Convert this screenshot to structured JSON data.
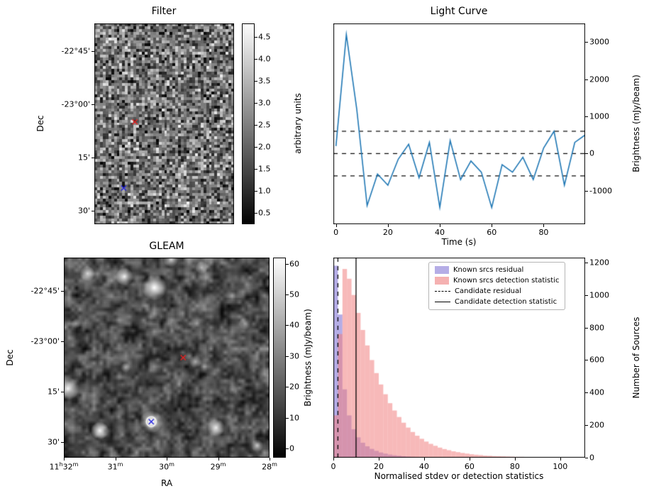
{
  "figure": {
    "background": "#ffffff"
  },
  "chart_data": [
    {
      "id": "filter",
      "type": "heatmap",
      "title": "Filter",
      "ylabel": "Dec",
      "ytick_labels": [
        "-22°45'",
        "-23°00'",
        "15'",
        "30'"
      ],
      "colorbar": {
        "label": "arbitrary units",
        "vmin": 0.25,
        "vmax": 4.8,
        "ticks": [
          4.5,
          4.0,
          3.5,
          3.0,
          2.5,
          2.0,
          1.5,
          1.0,
          0.5
        ],
        "decimals": 1
      },
      "markers": [
        {
          "name": "candidate-marker",
          "color": "#e82222",
          "x": 0.29,
          "y": 0.49
        },
        {
          "name": "known-source-marker",
          "color": "#2222dd",
          "x": 0.21,
          "y": 0.82
        }
      ],
      "noise": {
        "seed": 42,
        "cols": 50,
        "rows": 71,
        "mean": 0.45,
        "amp": 0.5
      }
    },
    {
      "id": "light_curve",
      "type": "line",
      "title": "Light Curve",
      "xlabel": "Time (s)",
      "ylabel": "Brightness (mJy/beam)",
      "line_color": "#1f77b4",
      "x": [
        0,
        4,
        8,
        12,
        16,
        20,
        24,
        28,
        32,
        36,
        40,
        44,
        48,
        52,
        56,
        60,
        64,
        68,
        72,
        76,
        80,
        84,
        88,
        92,
        96
      ],
      "y": [
        200,
        3200,
        1200,
        -1400,
        -550,
        -850,
        -150,
        250,
        -650,
        300,
        -1450,
        350,
        -700,
        -200,
        -500,
        -1450,
        -300,
        -500,
        -100,
        -700,
        150,
        600,
        -850,
        300,
        500
      ],
      "dashed_lines": [
        600,
        0,
        -600
      ],
      "xlim": [
        -1,
        96
      ],
      "ylim": [
        -1900,
        3500
      ],
      "xticks": [
        0,
        20,
        40,
        60,
        80
      ],
      "yticks": [
        -1000,
        0,
        1000,
        2000,
        3000
      ]
    },
    {
      "id": "gleam",
      "type": "heatmap",
      "title": "GLEAM",
      "xlabel": "RA",
      "ylabel": "Dec",
      "xtick_labels": [
        "11^h^32^m",
        "31^m",
        "30^m",
        "29^m",
        "28^m"
      ],
      "ytick_labels": [
        "-22°45'",
        "-23°00'",
        "15'",
        "30'"
      ],
      "colorbar": {
        "label": "Brightness (mJy/beam)",
        "vmin": -3,
        "vmax": 62,
        "ticks": [
          60,
          50,
          40,
          30,
          20,
          10,
          0
        ],
        "decimals": 0
      },
      "markers": [
        {
          "name": "candidate-marker",
          "color": "#e82222",
          "x": 0.58,
          "y": 0.5
        },
        {
          "name": "known-source-marker",
          "color": "#2222dd",
          "x": 0.425,
          "y": 0.82,
          "circled": true
        }
      ],
      "blobs": [
        [
          0.44,
          0.15,
          10,
          1.0
        ],
        [
          0.295,
          0.095,
          7,
          0.95
        ],
        [
          0.115,
          0.08,
          6,
          0.8
        ],
        [
          0.52,
          0.01,
          6,
          0.75
        ],
        [
          0.67,
          0.05,
          5,
          0.6
        ],
        [
          0.02,
          0.655,
          9,
          0.95
        ],
        [
          0.425,
          0.82,
          9,
          1.0
        ],
        [
          0.175,
          0.865,
          7,
          0.95
        ],
        [
          0.74,
          0.85,
          7,
          0.9
        ],
        [
          0.64,
          0.52,
          5,
          0.55
        ],
        [
          0.88,
          0.33,
          5,
          0.5
        ],
        [
          0.94,
          0.94,
          5,
          0.6
        ],
        [
          0.06,
          0.33,
          4,
          0.4
        ],
        [
          0.56,
          0.35,
          4,
          0.35
        ],
        [
          0.3,
          0.55,
          4,
          0.4
        ],
        [
          0.82,
          0.66,
          4,
          0.35
        ]
      ],
      "noise": {
        "seed": 7,
        "cols": 58,
        "rows": 56,
        "mean": 0.3,
        "amp": 0.45
      }
    },
    {
      "id": "histogram",
      "type": "bar",
      "xlabel": "Normalised stdev or detection statistics",
      "ylabel": "Number of Sources",
      "bin_start": 0,
      "bin_width": 2,
      "series": [
        {
          "name": "Known srcs residual",
          "color": "rgba(106,90,205,0.5)",
          "values": [
            1180,
            880,
            420,
            260,
            175,
            125,
            92,
            70,
            54,
            42,
            32,
            25,
            19,
            15,
            12,
            9,
            7,
            6,
            5,
            4,
            3,
            3,
            2,
            2,
            2,
            1,
            1,
            1,
            1,
            1,
            0,
            0,
            1,
            0,
            0,
            0,
            0,
            0,
            0,
            0,
            0,
            0,
            0,
            0,
            0,
            0,
            0,
            0,
            0,
            0,
            0,
            0,
            0,
            0,
            0,
            0
          ]
        },
        {
          "name": "Known srcs detection statistic",
          "color": "rgba(240,128,128,0.55)",
          "values": [
            260,
            760,
            1160,
            1100,
            1000,
            890,
            785,
            690,
            600,
            520,
            450,
            390,
            335,
            290,
            250,
            215,
            185,
            158,
            135,
            116,
            99,
            85,
            73,
            62,
            53,
            46,
            39,
            34,
            29,
            25,
            21,
            18,
            16,
            13,
            12,
            10,
            9,
            8,
            7,
            6,
            5,
            5,
            4,
            4,
            3,
            3,
            3,
            2,
            2,
            2,
            2,
            2,
            2,
            1,
            1,
            1
          ]
        }
      ],
      "vlines": [
        {
          "name": "Candidate residual",
          "style": "dashed",
          "x": 2
        },
        {
          "name": "Candidate detection statistic",
          "style": "solid",
          "x": 10
        }
      ],
      "xlim": [
        0,
        111
      ],
      "ylim": [
        0,
        1230
      ],
      "xticks": [
        0,
        20,
        40,
        60,
        80,
        100
      ],
      "yticks": [
        0,
        200,
        400,
        600,
        800,
        1000,
        1200
      ],
      "legend": [
        {
          "type": "patch",
          "color": "#b5ade6",
          "label": "Known srcs residual"
        },
        {
          "type": "patch",
          "color": "#f5b1b1",
          "label": "Known srcs detection statistic"
        },
        {
          "type": "line",
          "style": "dashed",
          "label": "Candidate residual"
        },
        {
          "type": "line",
          "style": "solid",
          "label": "Candidate detection statistic"
        }
      ]
    }
  ]
}
